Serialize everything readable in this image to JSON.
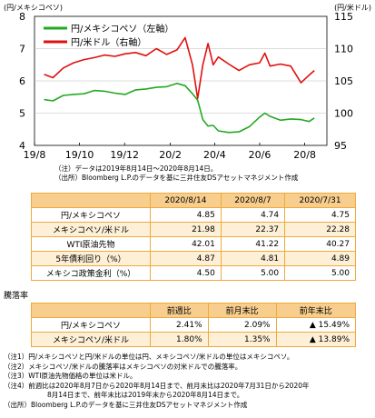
{
  "chart_data": {
    "type": "line",
    "left_axis_label": "(円/メキシコペソ)",
    "right_axis_label": "(円/米ドル)",
    "left_ylim": [
      4,
      8
    ],
    "right_ylim": [
      95,
      115
    ],
    "left_ticks": [
      "8",
      "7",
      "6",
      "5",
      "4"
    ],
    "right_ticks": [
      "115",
      "110",
      "105",
      "100",
      "95"
    ],
    "x_ticks": [
      "19/8",
      "19/10",
      "19/12",
      "20/2",
      "20/4",
      "20/6",
      "20/8"
    ],
    "legend": [
      "円/メキシコペソ（左軸）",
      "円/米ドル（右軸）"
    ],
    "series": [
      {
        "name": "円/メキシコペソ（左軸）",
        "axis": "left",
        "color": "#22aa22",
        "x": [
          "2019-08-14",
          "2019-08-26",
          "2019-09-09",
          "2019-09-23",
          "2019-10-07",
          "2019-10-21",
          "2019-11-04",
          "2019-11-18",
          "2019-12-02",
          "2019-12-16",
          "2019-12-30",
          "2020-01-13",
          "2020-01-27",
          "2020-02-10",
          "2020-02-21",
          "2020-03-02",
          "2020-03-09",
          "2020-03-16",
          "2020-03-23",
          "2020-03-30",
          "2020-04-06",
          "2020-04-20",
          "2020-05-04",
          "2020-05-18",
          "2020-06-01",
          "2020-06-08",
          "2020-06-15",
          "2020-06-29",
          "2020-07-13",
          "2020-07-27",
          "2020-08-07",
          "2020-08-14"
        ],
        "values": [
          5.42,
          5.38,
          5.55,
          5.58,
          5.6,
          5.7,
          5.68,
          5.62,
          5.58,
          5.72,
          5.75,
          5.8,
          5.82,
          5.92,
          5.85,
          5.6,
          5.4,
          4.8,
          4.6,
          4.62,
          4.45,
          4.4,
          4.42,
          4.58,
          4.88,
          5.0,
          4.9,
          4.78,
          4.82,
          4.8,
          4.74,
          4.85
        ]
      },
      {
        "name": "円/米ドル（右軸）",
        "axis": "right",
        "color": "#e01010",
        "x": [
          "2019-08-14",
          "2019-08-26",
          "2019-09-09",
          "2019-09-23",
          "2019-10-07",
          "2019-10-21",
          "2019-11-04",
          "2019-11-18",
          "2019-12-02",
          "2019-12-16",
          "2019-12-30",
          "2020-01-13",
          "2020-01-27",
          "2020-02-10",
          "2020-02-21",
          "2020-03-02",
          "2020-03-09",
          "2020-03-16",
          "2020-03-23",
          "2020-03-30",
          "2020-04-06",
          "2020-04-20",
          "2020-05-04",
          "2020-05-18",
          "2020-06-01",
          "2020-06-08",
          "2020-06-15",
          "2020-06-29",
          "2020-07-13",
          "2020-07-27",
          "2020-08-07",
          "2020-08-14"
        ],
        "values": [
          106.0,
          105.5,
          107.0,
          107.8,
          108.3,
          108.6,
          109.0,
          108.8,
          109.2,
          109.4,
          108.9,
          110.0,
          109.1,
          109.8,
          111.7,
          107.5,
          102.3,
          107.5,
          110.8,
          107.5,
          108.7,
          107.6,
          106.6,
          107.5,
          107.8,
          109.3,
          107.3,
          107.6,
          107.3,
          104.7,
          105.9,
          106.6
        ]
      }
    ],
    "notes": [
      "（注）データは2019年8月14日～2020年8月14日。",
      "（出所）Bloomberg L.P.のデータを基に三井住友DSアセットマネジメント作成"
    ]
  },
  "table1": {
    "headers": [
      "",
      "2020/8/14",
      "2020/8/7",
      "2020/7/31"
    ],
    "rows": [
      {
        "label": "円/メキシコペソ",
        "v": [
          "4.85",
          "4.74",
          "4.75"
        ]
      },
      {
        "label": "メキシコペソ/米ドル",
        "v": [
          "21.98",
          "22.37",
          "22.28"
        ]
      },
      {
        "label": "WTI原油先物",
        "v": [
          "42.01",
          "41.22",
          "40.27"
        ]
      },
      {
        "label": "5年債利回り（%）",
        "v": [
          "4.87",
          "4.81",
          "4.89"
        ]
      },
      {
        "label": "メキシコ政策金利（%）",
        "v": [
          "4.50",
          "5.00",
          "5.00"
        ]
      }
    ]
  },
  "table2": {
    "title": "騰落率",
    "headers": [
      "",
      "前週比",
      "前月末比",
      "前年末比"
    ],
    "rows": [
      {
        "label": "円/メキシコペソ",
        "v": [
          "2.41%",
          "2.09%",
          "▲ 15.49%"
        ]
      },
      {
        "label": "メキシコペソ/米ドル",
        "v": [
          "1.80%",
          "1.35%",
          "▲ 13.89%"
        ]
      }
    ]
  },
  "footnotes": [
    "（注1）円/メキシコペソと円/米ドルの単位は円、メキシコペソ/米ドルの単位はメキシコペソ。",
    "（注2）メキシコペソ/米ドルの騰落率はメキシコペソの対米ドルでの騰落率。",
    "（注3）WTI原油先物価格の単位は米ドル。",
    "（注4）前週比は2020年8月7日から2020年8月14日まで、前月末比は2020年7月31日から2020年",
    "8月14日まで、前年末比は2019年末から2020年8月14日まで。",
    "（出所）Bloomberg L.P.のデータを基に三井住友DSアセットマネジメント作成"
  ]
}
